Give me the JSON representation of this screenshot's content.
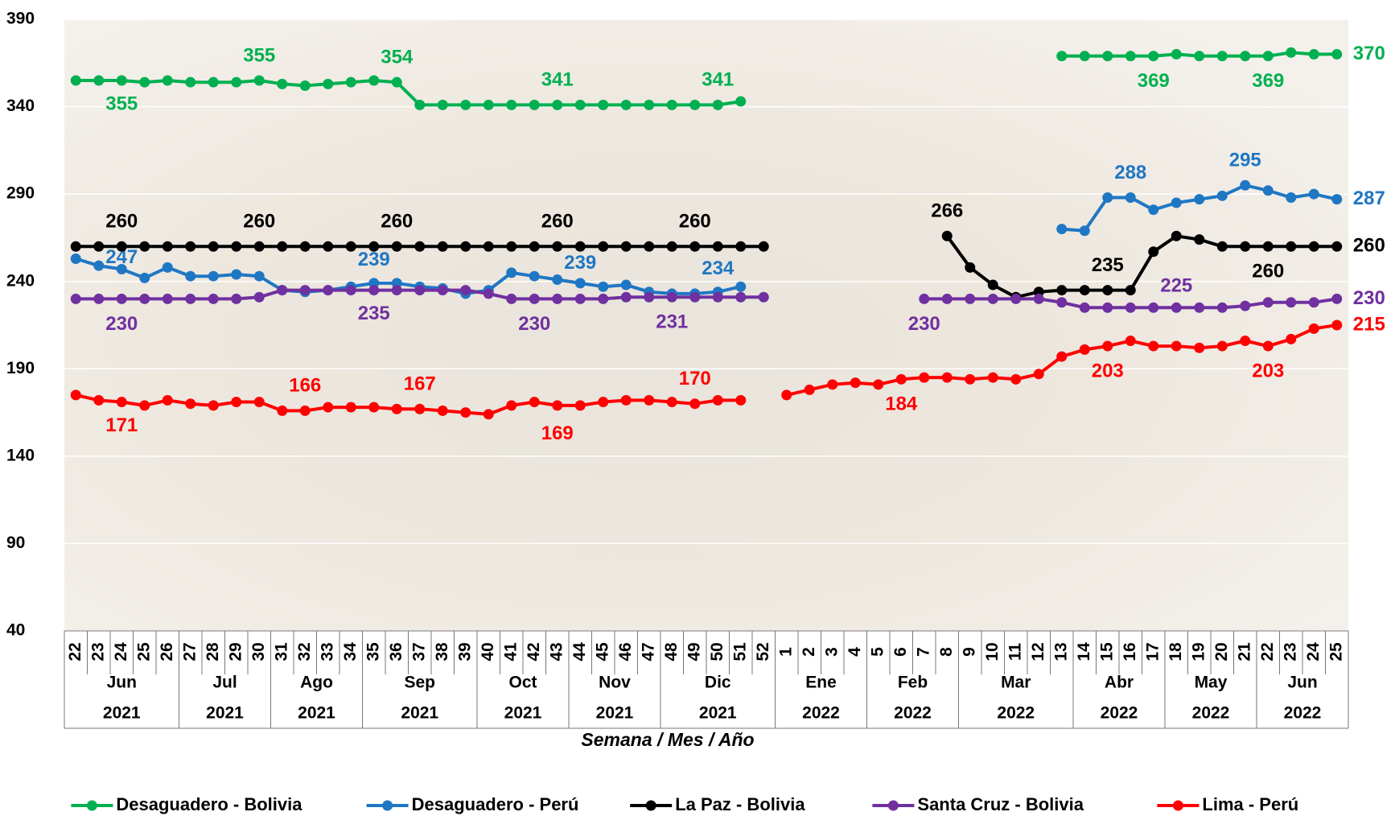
{
  "chart_data": {
    "type": "line",
    "x_label": "Semana / Mes / Año",
    "groups": [
      {
        "month": "Jun",
        "year": "2021",
        "weeks": [
          22,
          23,
          24,
          25,
          26
        ]
      },
      {
        "month": "Jul",
        "year": "2021",
        "weeks": [
          27,
          28,
          29,
          30
        ]
      },
      {
        "month": "Ago",
        "year": "2021",
        "weeks": [
          31,
          32,
          33,
          34
        ]
      },
      {
        "month": "Sep",
        "year": "2021",
        "weeks": [
          35,
          36,
          37,
          38,
          39
        ]
      },
      {
        "month": "Oct",
        "year": "2021",
        "weeks": [
          40,
          41,
          42,
          43
        ]
      },
      {
        "month": "Nov",
        "year": "2021",
        "weeks": [
          44,
          45,
          46,
          47
        ]
      },
      {
        "month": "Dic",
        "year": "2021",
        "weeks": [
          48,
          49,
          50,
          51,
          52
        ]
      },
      {
        "month": "Ene",
        "year": "2022",
        "weeks": [
          1,
          2,
          3,
          4
        ]
      },
      {
        "month": "Feb",
        "year": "2022",
        "weeks": [
          5,
          6,
          7,
          8
        ]
      },
      {
        "month": "Mar",
        "year": "2022",
        "weeks": [
          9,
          10,
          11,
          12,
          13
        ]
      },
      {
        "month": "Abr",
        "year": "2022",
        "weeks": [
          14,
          15,
          16,
          17
        ]
      },
      {
        "month": "May",
        "year": "2022",
        "weeks": [
          18,
          19,
          20,
          21
        ]
      },
      {
        "month": "Jun",
        "year": "2022",
        "weeks": [
          22,
          23,
          24,
          25
        ]
      }
    ],
    "ylim": [
      40,
      390
    ],
    "yticks": [
      40,
      90,
      140,
      190,
      240,
      290,
      340,
      390
    ],
    "grid": true,
    "legend": "bottom",
    "series": [
      {
        "name": "Desaguadero - Bolivia",
        "color": "#00b050",
        "values": [
          355,
          355,
          355,
          354,
          355,
          354,
          354,
          354,
          355,
          353,
          352,
          353,
          354,
          355,
          354,
          341,
          341,
          341,
          341,
          341,
          341,
          341,
          341,
          341,
          341,
          341,
          341,
          341,
          341,
          343,
          null,
          null,
          null,
          null,
          null,
          null,
          null,
          null,
          null,
          null,
          null,
          null,
          null,
          369,
          369,
          369,
          369,
          369,
          370,
          369,
          369,
          369,
          369,
          371,
          370,
          370
        ]
      },
      {
        "name": "Desaguadero - Perú",
        "color": "#1f77c4",
        "values": [
          253,
          249,
          247,
          242,
          248,
          243,
          243,
          244,
          243,
          235,
          234,
          235,
          237,
          239,
          239,
          237,
          236,
          233,
          235,
          245,
          243,
          241,
          239,
          237,
          238,
          234,
          233,
          233,
          234,
          237,
          null,
          null,
          null,
          null,
          null,
          null,
          null,
          null,
          null,
          null,
          null,
          null,
          null,
          270,
          269,
          288,
          288,
          281,
          285,
          287,
          289,
          295,
          292,
          288,
          290,
          287
        ]
      },
      {
        "name": "La Paz - Bolivia",
        "color": "#000000",
        "values": [
          260,
          260,
          260,
          260,
          260,
          260,
          260,
          260,
          260,
          260,
          260,
          260,
          260,
          260,
          260,
          260,
          260,
          260,
          260,
          260,
          260,
          260,
          260,
          260,
          260,
          260,
          260,
          260,
          260,
          260,
          260,
          null,
          null,
          null,
          null,
          null,
          null,
          null,
          266,
          248,
          238,
          231,
          234,
          235,
          235,
          235,
          235,
          257,
          266,
          264,
          260,
          260,
          260,
          260,
          260,
          260
        ]
      },
      {
        "name": "Santa Cruz - Bolivia",
        "color": "#7030a0",
        "values": [
          230,
          230,
          230,
          230,
          230,
          230,
          230,
          230,
          231,
          235,
          235,
          235,
          235,
          235,
          235,
          235,
          235,
          235,
          233,
          230,
          230,
          230,
          230,
          230,
          231,
          231,
          231,
          231,
          231,
          231,
          231,
          null,
          null,
          null,
          null,
          null,
          null,
          230,
          230,
          230,
          230,
          230,
          230,
          228,
          225,
          225,
          225,
          225,
          225,
          225,
          225,
          226,
          228,
          228,
          228,
          230
        ]
      },
      {
        "name": "Lima - Perú",
        "color": "#ff0000",
        "values": [
          175,
          172,
          171,
          169,
          172,
          170,
          169,
          171,
          171,
          166,
          166,
          168,
          168,
          168,
          167,
          167,
          166,
          165,
          164,
          169,
          171,
          169,
          169,
          171,
          172,
          172,
          171,
          170,
          172,
          172,
          null,
          175,
          178,
          181,
          182,
          181,
          184,
          185,
          185,
          184,
          185,
          184,
          187,
          197,
          201,
          203,
          206,
          203,
          203,
          202,
          203,
          206,
          203,
          207,
          213,
          215
        ]
      }
    ]
  }
}
